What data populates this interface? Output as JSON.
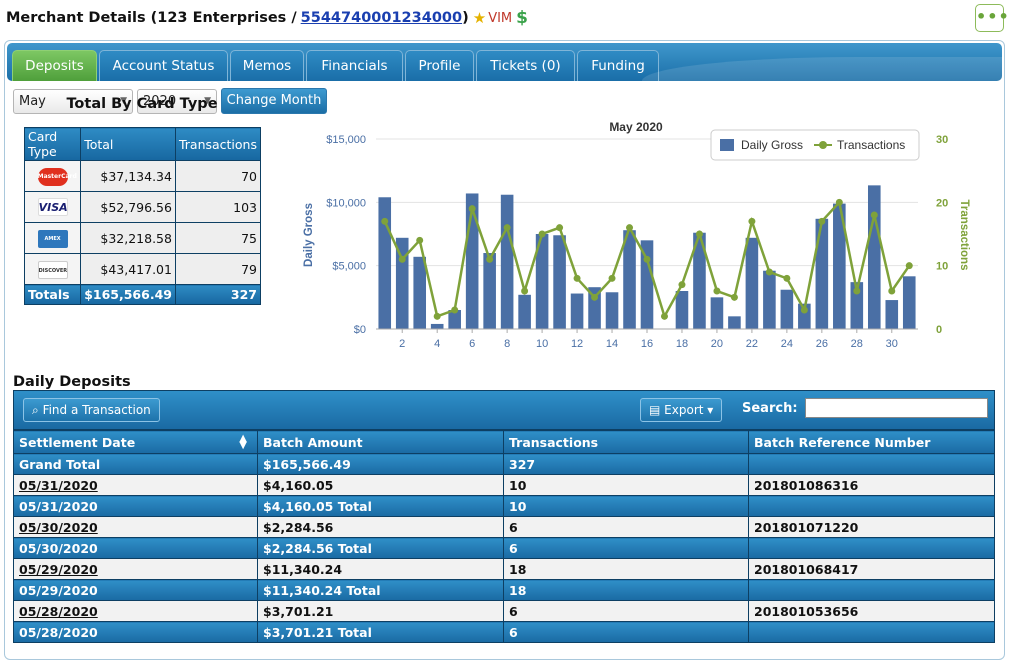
{
  "header": {
    "title_prefix": "Merchant Details (123 Enterprises / ",
    "merchant_id": "5544740001234000",
    "title_suffix": ")",
    "star_icon": "★",
    "vim": "VIM",
    "dollar_icon": "$",
    "more_icon": "•••"
  },
  "tabs": [
    {
      "label": "Deposits",
      "active": true
    },
    {
      "label": "Account Status"
    },
    {
      "label": "Memos"
    },
    {
      "label": "Financials"
    },
    {
      "label": "Profile"
    },
    {
      "label": "Tickets (0)"
    },
    {
      "label": "Funding"
    }
  ],
  "filters": {
    "month": "May",
    "year": "2020",
    "change_button": "Change Month"
  },
  "card_type": {
    "title": "Total By Card Type",
    "headers": [
      "Card Type",
      "Total",
      "Transactions"
    ],
    "rows": [
      {
        "card": "MasterCard",
        "total": "$37,134.34",
        "transactions": "70"
      },
      {
        "card": "VISA",
        "total": "$52,796.56",
        "transactions": "103"
      },
      {
        "card": "AMEX",
        "total": "$32,218.58",
        "transactions": "75"
      },
      {
        "card": "DISCOVER",
        "total": "$43,417.01",
        "transactions": "79"
      }
    ],
    "totals": {
      "label": "Totals",
      "total": "$165,566.49",
      "transactions": "327"
    }
  },
  "chart_data": {
    "type": "bar",
    "title": "May 2020",
    "ylabel": "Daily Gross",
    "y2label": "Transactions",
    "x": [
      1,
      2,
      3,
      4,
      5,
      6,
      7,
      8,
      9,
      10,
      11,
      12,
      13,
      14,
      15,
      16,
      17,
      18,
      19,
      20,
      21,
      22,
      23,
      24,
      25,
      26,
      27,
      28,
      29,
      30,
      31
    ],
    "x_ticks": [
      "2",
      "4",
      "6",
      "8",
      "10",
      "12",
      "14",
      "16",
      "18",
      "20",
      "22",
      "24",
      "26",
      "28",
      "30"
    ],
    "y_ticks": [
      "$0",
      "$5,000",
      "$10,000",
      "$15,000"
    ],
    "y2_ticks": [
      "0",
      "10",
      "20",
      "30"
    ],
    "ylim": [
      0,
      15000
    ],
    "y2lim": [
      0,
      30
    ],
    "legend_position": "top-right",
    "series": [
      {
        "name": "Daily Gross",
        "type": "bar",
        "color": "#4a6fa5",
        "values": [
          10400,
          7200,
          5700,
          400,
          1500,
          10700,
          6000,
          10600,
          2700,
          7500,
          7400,
          2800,
          3300,
          2900,
          7800,
          7000,
          0,
          3000,
          7600,
          2500,
          1000,
          7200,
          4600,
          3100,
          2000,
          8700,
          9900,
          3700,
          11340.24,
          2284.56,
          4160.05
        ]
      },
      {
        "name": "Transactions",
        "type": "line",
        "color": "#7fa23a",
        "values": [
          17,
          11,
          14,
          2,
          3,
          19,
          11,
          16,
          6,
          15,
          16,
          8,
          5,
          8,
          16,
          11,
          2,
          7,
          15,
          6,
          5,
          17,
          9,
          8,
          3,
          17,
          20,
          6,
          18,
          6,
          10
        ]
      }
    ]
  },
  "deposits": {
    "title": "Daily Deposits",
    "find_button": "Find a Transaction",
    "export_button": "Export",
    "search_label": "Search:",
    "search_value": "",
    "headers": [
      "Settlement Date",
      "Batch Amount",
      "Transactions",
      "Batch Reference Number"
    ],
    "rows": [
      {
        "kind": "tot",
        "date": "Grand Total",
        "amount": "$165,566.49",
        "tx": "327",
        "ref": ""
      },
      {
        "kind": "row",
        "date": "05/31/2020",
        "amount": "$4,160.05",
        "tx": "10",
        "ref": "201801086316"
      },
      {
        "kind": "tot",
        "date": "05/31/2020",
        "amount": "$4,160.05 Total",
        "tx": "10",
        "ref": ""
      },
      {
        "kind": "row",
        "date": "05/30/2020",
        "amount": "$2,284.56",
        "tx": "6",
        "ref": "201801071220"
      },
      {
        "kind": "tot",
        "date": "05/30/2020",
        "amount": "$2,284.56 Total",
        "tx": "6",
        "ref": ""
      },
      {
        "kind": "row",
        "date": "05/29/2020",
        "amount": "$11,340.24",
        "tx": "18",
        "ref": "201801068417"
      },
      {
        "kind": "tot",
        "date": "05/29/2020",
        "amount": "$11,340.24 Total",
        "tx": "18",
        "ref": ""
      },
      {
        "kind": "row",
        "date": "05/28/2020",
        "amount": "$3,701.21",
        "tx": "6",
        "ref": "201801053656"
      },
      {
        "kind": "tot",
        "date": "05/28/2020",
        "amount": "$3,701.21 Total",
        "tx": "6",
        "ref": ""
      }
    ]
  }
}
